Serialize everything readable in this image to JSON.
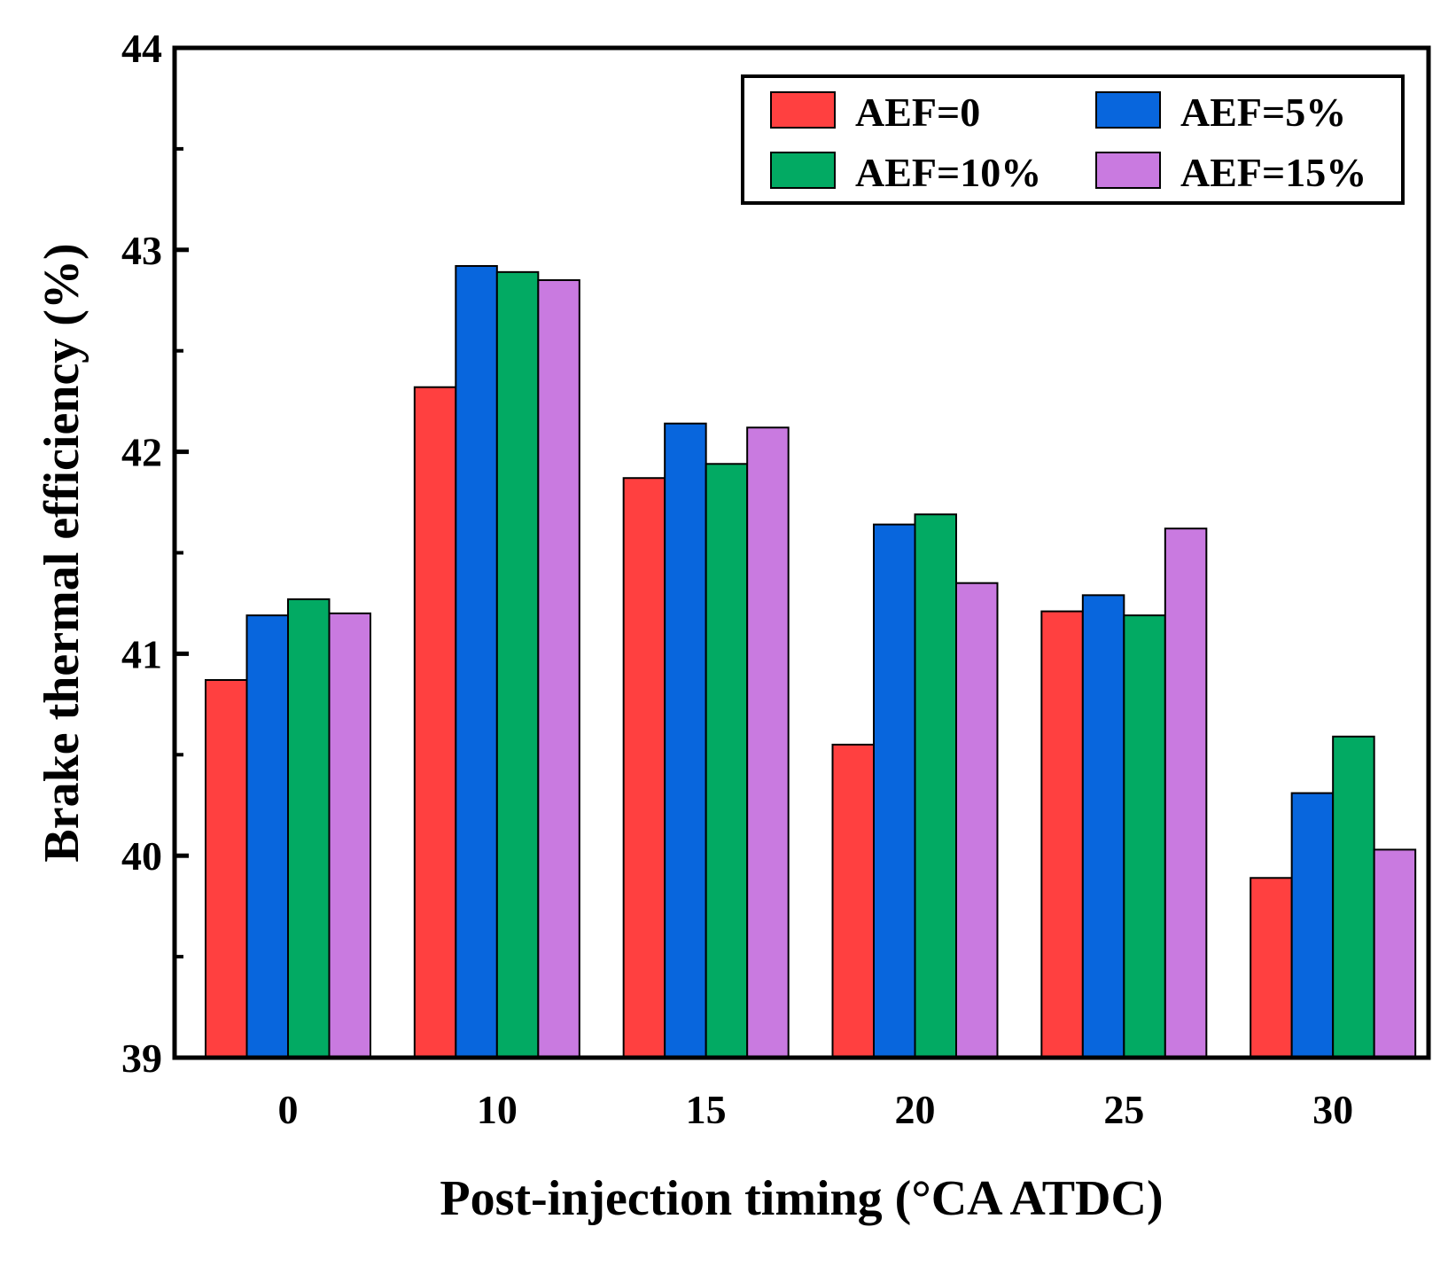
{
  "chart_data": {
    "type": "bar",
    "title": "",
    "xlabel": "Post-injection timing (°CA ATDC)",
    "ylabel": "Brake thermal efficiency (%)",
    "categories": [
      "0",
      "10",
      "15",
      "20",
      "25",
      "30"
    ],
    "ylim": [
      39,
      44
    ],
    "yticks": [
      "39",
      "40",
      "41",
      "42",
      "43",
      "44"
    ],
    "ytick_values": [
      39,
      40,
      41,
      42,
      43,
      44
    ],
    "grid": false,
    "legend_position": "top-right",
    "series": [
      {
        "name": "AEF=0",
        "color": "#ff4040",
        "values": [
          40.87,
          42.32,
          41.87,
          40.55,
          41.21,
          39.89
        ]
      },
      {
        "name": "AEF=5%",
        "color": "#0866dd",
        "values": [
          41.19,
          42.92,
          42.14,
          41.64,
          41.29,
          40.31
        ]
      },
      {
        "name": "AEF=10%",
        "color": "#02aa63",
        "values": [
          41.27,
          42.89,
          41.94,
          41.69,
          41.19,
          40.59
        ]
      },
      {
        "name": "AEF=15%",
        "color": "#c97ae0",
        "values": [
          41.2,
          42.85,
          42.12,
          41.35,
          41.62,
          40.03
        ]
      }
    ]
  }
}
